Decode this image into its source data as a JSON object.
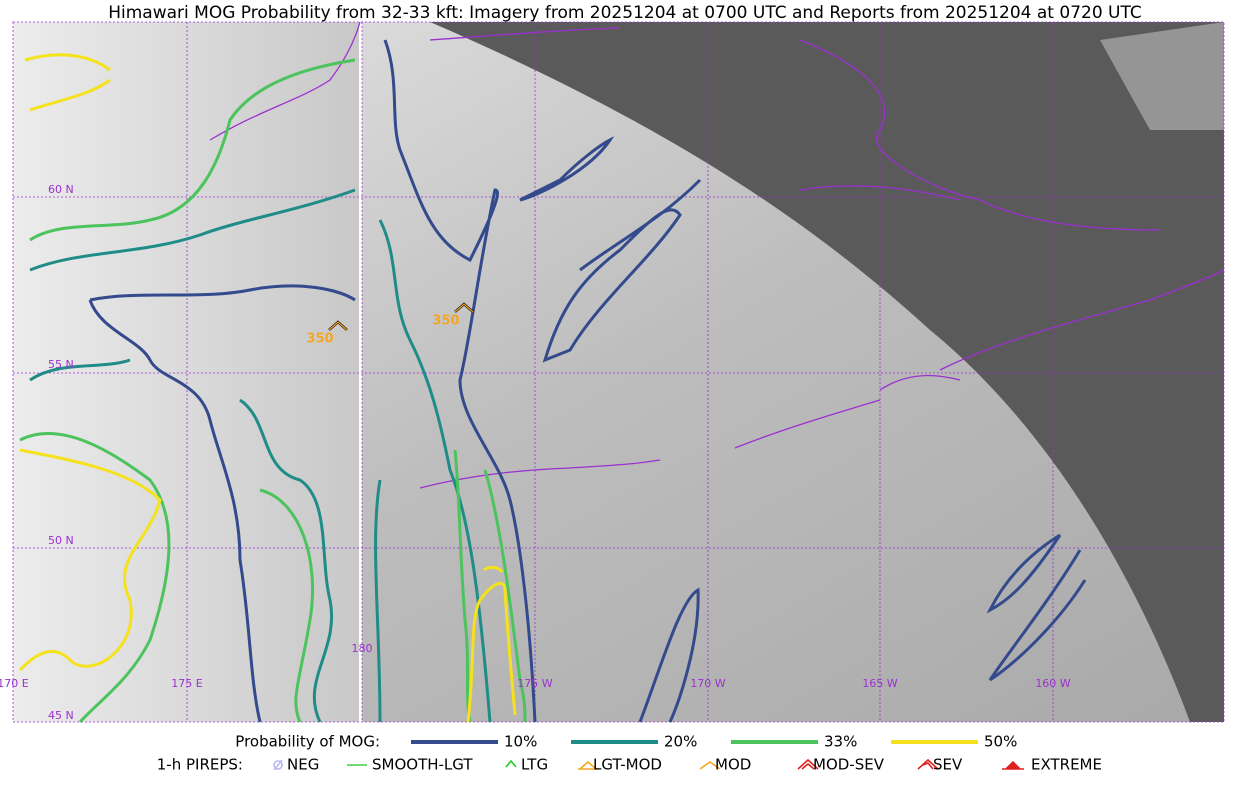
{
  "header": {
    "title": "Himawari MOG Probability from 32-33 kft: Imagery from 20251204 at 0700 UTC and Reports from 20251204 at 0720 UTC"
  },
  "map": {
    "lat_labels": [
      "60 N",
      "55 N",
      "50 N",
      "45 N"
    ],
    "lon_labels": [
      "170 E",
      "175 E",
      "180",
      "175 W",
      "170 W",
      "165 W",
      "160 W"
    ],
    "reports": [
      {
        "label": "350"
      },
      {
        "label": "350"
      }
    ]
  },
  "legend": {
    "probability": {
      "title": "Probability of MOG:",
      "items": [
        {
          "label": "10%",
          "color": "#334a8c"
        },
        {
          "label": "20%",
          "color": "#1f8c88"
        },
        {
          "label": "33%",
          "color": "#4cc35c"
        },
        {
          "label": "50%",
          "color": "#f5e21c"
        }
      ]
    },
    "pireps": {
      "title": "1-h PIREPS:",
      "items": [
        {
          "label": "NEG",
          "color": "#b8b8f0"
        },
        {
          "label": "SMOOTH-LGT",
          "color": "#44d144"
        },
        {
          "label": "LTG",
          "color": "#22cc22"
        },
        {
          "label": "LGT-MOD",
          "color": "#f5a623"
        },
        {
          "label": "MOD",
          "color": "#f5a623"
        },
        {
          "label": "MOD-SEV",
          "color": "#e02020"
        },
        {
          "label": "SEV",
          "color": "#e02020"
        },
        {
          "label": "EXTREME",
          "color": "#e02020"
        }
      ]
    }
  }
}
